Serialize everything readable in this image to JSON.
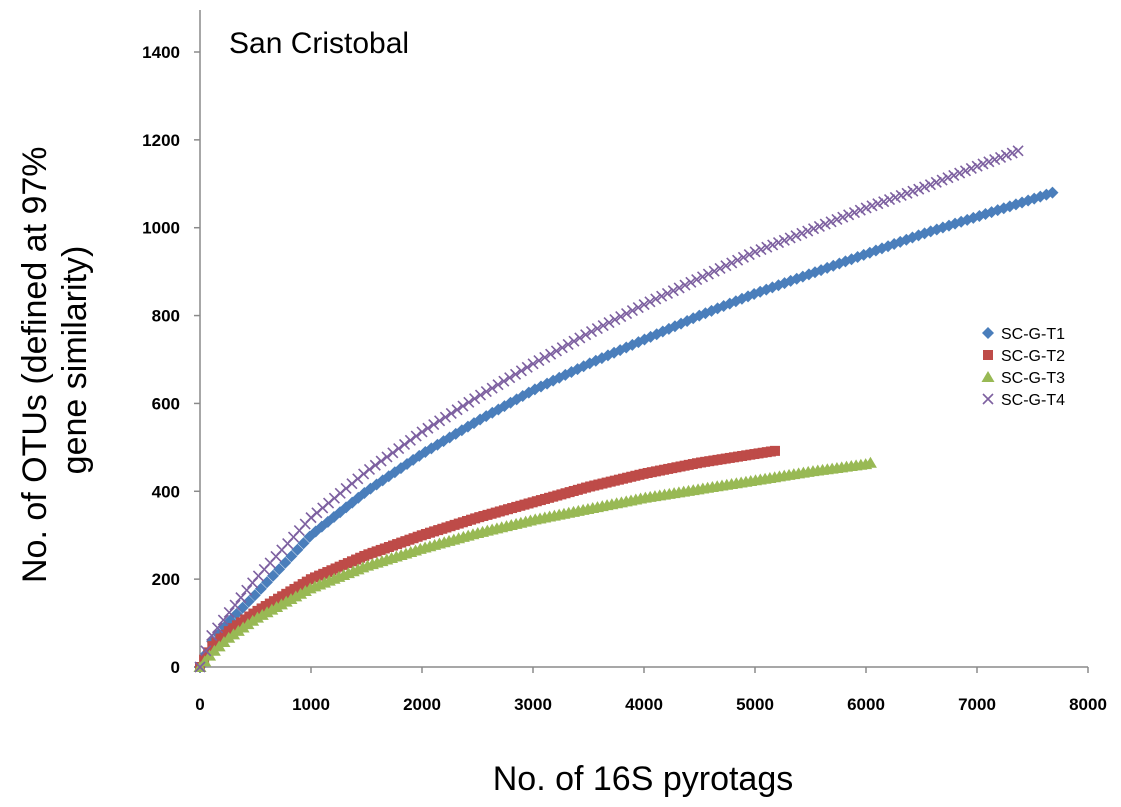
{
  "chart_data": {
    "type": "scatter",
    "title": "San Cristobal",
    "xlabel": "No. of 16S pyrotags",
    "ylabel_lines": [
      "No. of OTUs (defined at 97%",
      "gene similarity)"
    ],
    "xlim": [
      0,
      8000
    ],
    "ylim": [
      0,
      1400
    ],
    "xticks": [
      0,
      1000,
      2000,
      3000,
      4000,
      5000,
      6000,
      7000,
      8000
    ],
    "yticks": [
      0,
      200,
      400,
      600,
      800,
      1000,
      1200,
      1400
    ],
    "grid": false,
    "legend_position": "right",
    "series": [
      {
        "name": "SC-G-T1",
        "marker": "diamond",
        "color": "#4a7ebb",
        "x": [
          0,
          100,
          250,
          500,
          1000,
          1500,
          2000,
          2500,
          3000,
          3500,
          4000,
          4500,
          5000,
          5500,
          6000,
          6500,
          7000,
          7500,
          7680
        ],
        "y": [
          0,
          55,
          100,
          165,
          300,
          400,
          485,
          560,
          630,
          690,
          745,
          800,
          850,
          895,
          940,
          985,
          1025,
          1065,
          1080
        ]
      },
      {
        "name": "SC-G-T2",
        "marker": "square",
        "color": "#be4b48",
        "x": [
          0,
          100,
          250,
          500,
          1000,
          1500,
          2000,
          2500,
          3000,
          3500,
          4000,
          4500,
          5000,
          5180
        ],
        "y": [
          0,
          45,
          80,
          125,
          200,
          255,
          300,
          340,
          375,
          410,
          440,
          465,
          485,
          492
        ]
      },
      {
        "name": "SC-G-T3",
        "marker": "triangle",
        "color": "#98b954",
        "x": [
          0,
          100,
          250,
          500,
          1000,
          1500,
          2000,
          2500,
          3000,
          3500,
          4000,
          4500,
          5000,
          5500,
          6000,
          6040
        ],
        "y": [
          0,
          30,
          65,
          110,
          180,
          230,
          270,
          305,
          335,
          360,
          385,
          405,
          425,
          445,
          462,
          465
        ]
      },
      {
        "name": "SC-G-T4",
        "marker": "x",
        "color": "#7d60a0",
        "x": [
          0,
          100,
          250,
          500,
          1000,
          1500,
          2000,
          2500,
          3000,
          3500,
          4000,
          4500,
          5000,
          5500,
          6000,
          6500,
          7000,
          7370
        ],
        "y": [
          0,
          70,
          120,
          200,
          340,
          445,
          535,
          615,
          690,
          760,
          825,
          885,
          945,
          995,
          1045,
          1090,
          1140,
          1175
        ]
      }
    ]
  }
}
